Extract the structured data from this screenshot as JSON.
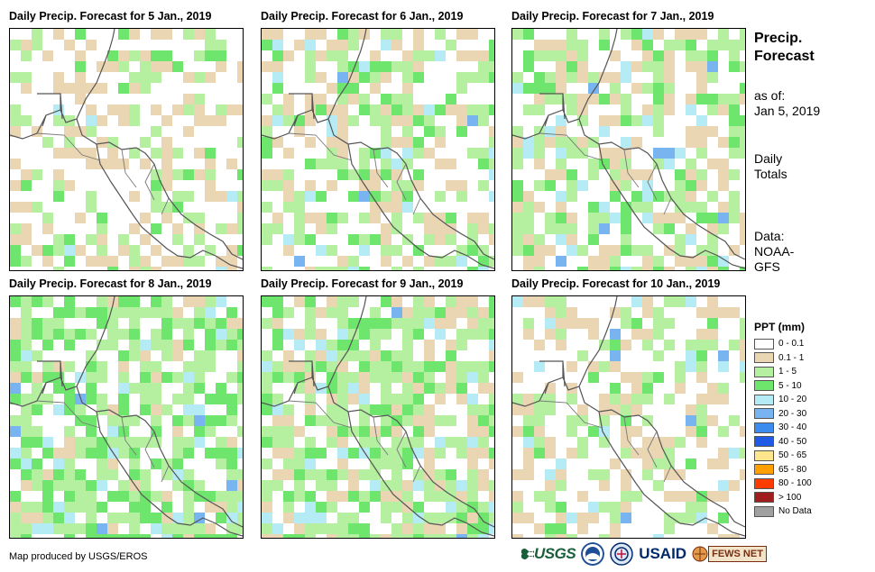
{
  "panels": [
    {
      "title": "Daily Precip. Forecast for 5 Jan., 2019"
    },
    {
      "title": "Daily Precip. Forecast for 6 Jan., 2019"
    },
    {
      "title": "Daily Precip. Forecast for 7 Jan., 2019"
    },
    {
      "title": "Daily Precip. Forecast for 8 Jan., 2019"
    },
    {
      "title": "Daily Precip. Forecast for 9 Jan., 2019"
    },
    {
      "title": "Daily Precip. Forecast for 10 Jan., 2019"
    }
  ],
  "side": {
    "title_line1": "Precip.",
    "title_line2": "Forecast",
    "asof_line1": "as of:",
    "asof_line2": "Jan 5, 2019",
    "totals_line1": "Daily",
    "totals_line2": "Totals",
    "data_line1": "Data:",
    "data_line2": "NOAA-",
    "data_line3": "GFS"
  },
  "legend": {
    "title": "PPT (mm)",
    "items": [
      {
        "label": "0 - 0.1",
        "color": "#ffffff"
      },
      {
        "label": "0.1 - 1",
        "color": "#ebd6b4"
      },
      {
        "label": "1 - 5",
        "color": "#b4f0a0"
      },
      {
        "label": "5 - 10",
        "color": "#6ee66e"
      },
      {
        "label": "10 - 20",
        "color": "#b4ebf5"
      },
      {
        "label": "20 - 30",
        "color": "#78b4f0"
      },
      {
        "label": "30 - 40",
        "color": "#3c8cf0"
      },
      {
        "label": "40 - 50",
        "color": "#1e5ae6"
      },
      {
        "label": "50 - 65",
        "color": "#ffe68c"
      },
      {
        "label": "65 - 80",
        "color": "#ffa000"
      },
      {
        "label": "80 - 100",
        "color": "#ff3c00"
      },
      {
        "label": "> 100",
        "color": "#a01e1e"
      },
      {
        "label": "No Data",
        "color": "#a0a0a0"
      }
    ]
  },
  "footer": {
    "credit": "Map produced by USGS/EROS",
    "logos": {
      "usgs": "USGS",
      "usaid": "USAID",
      "fews": "FEWS NET"
    }
  }
}
